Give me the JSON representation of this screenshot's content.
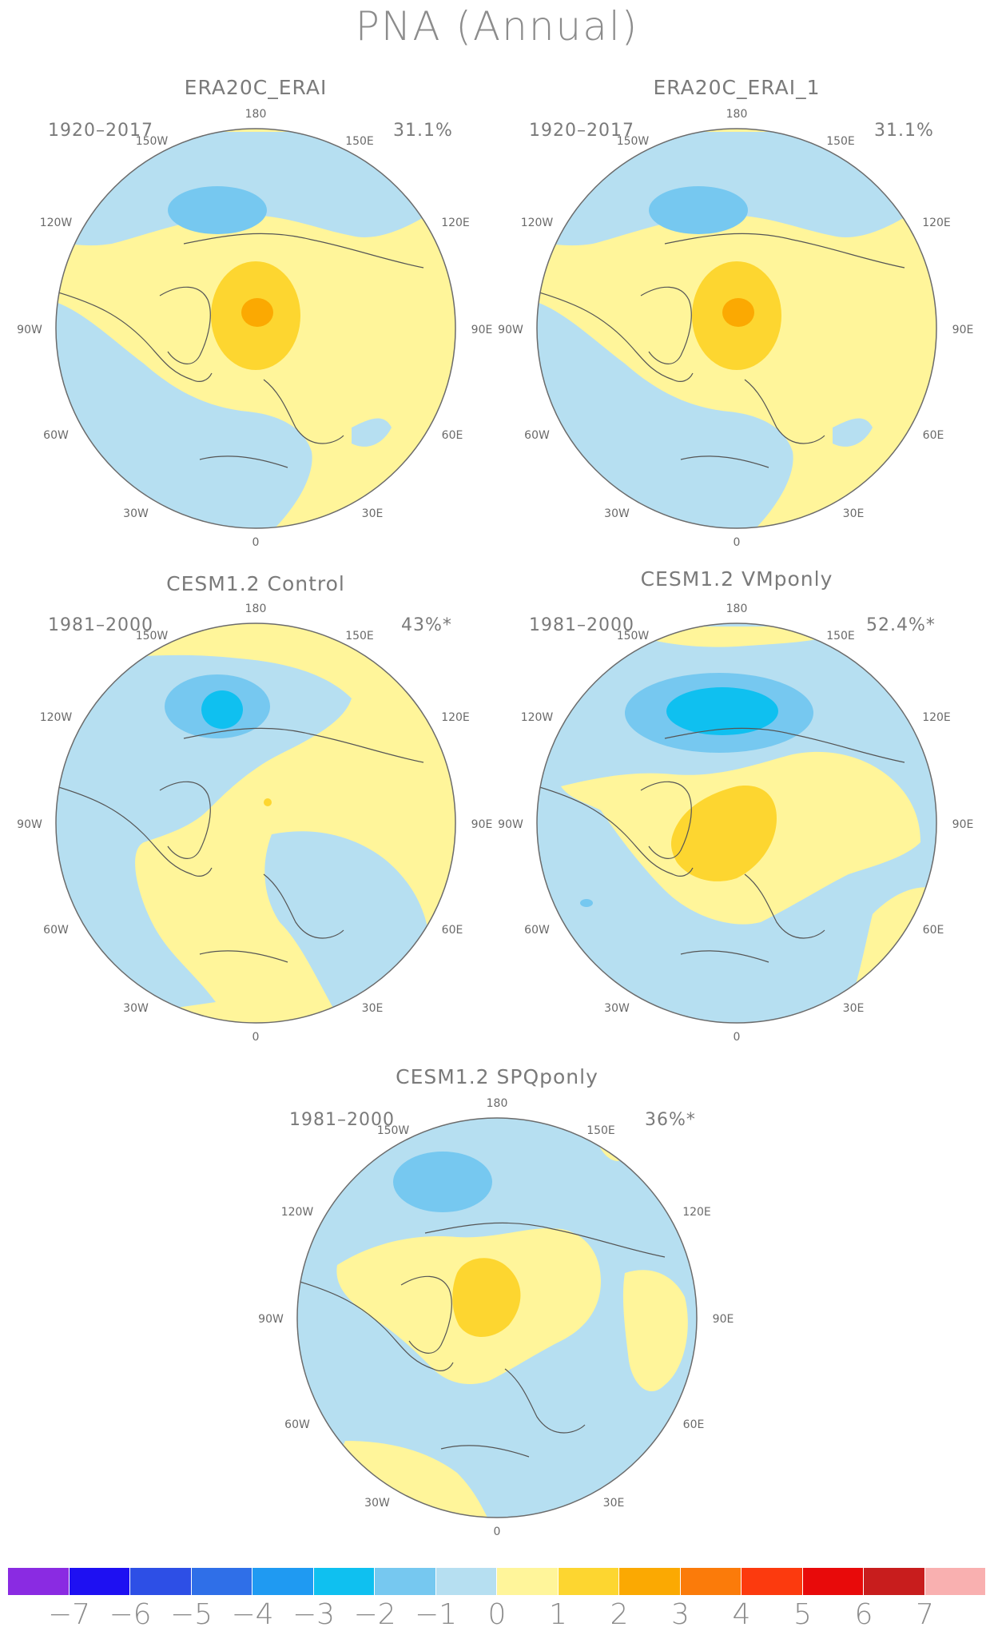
{
  "title": "PNA (Annual)",
  "panels": [
    {
      "title": "ERA20C_ERAI",
      "period": "1920–2017",
      "percent": "31.1%"
    },
    {
      "title": "ERA20C_ERAI_1",
      "period": "1920–2017",
      "percent": "31.1%"
    },
    {
      "title": "CESM1.2 Control",
      "period": "1981–2000",
      "percent": "43%*"
    },
    {
      "title": "CESM1.2 VMponly",
      "period": "1981–2000",
      "percent": "52.4%*"
    },
    {
      "title": "CESM1.2 SPQponly",
      "period": "1981–2000",
      "percent": "36%*"
    }
  ],
  "longitude_labels": {
    "top": "180",
    "nnw": "150W",
    "nne": "150E",
    "wnw": "120W",
    "ene": "120E",
    "west": "90W",
    "east": "90E",
    "wsw": "60W",
    "ese": "60E",
    "ssw": "30W",
    "sse": "30E",
    "bottom": "0"
  },
  "colorbar": {
    "colors": [
      "#8a2be2",
      "#1e10f2",
      "#2d4fe6",
      "#2f6fe8",
      "#1f9af2",
      "#0fc0f0",
      "#76c8f0",
      "#b6dff1",
      "#fff59a",
      "#fdd630",
      "#fba902",
      "#fb7b0a",
      "#fc3a0e",
      "#e80a0a",
      "#c81d1d",
      "#f9b0b0"
    ],
    "labels": [
      "−7",
      "−6",
      "−5",
      "−4",
      "−3",
      "−2",
      "−1",
      "0",
      "1",
      "2",
      "3",
      "4",
      "5",
      "6",
      "7"
    ]
  }
}
